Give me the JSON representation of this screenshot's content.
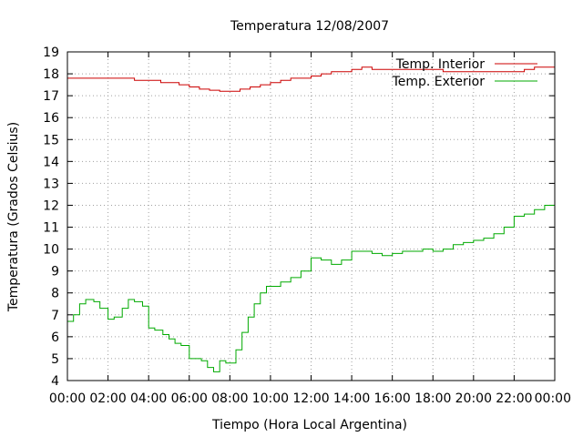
{
  "chart_data": {
    "type": "line",
    "title": "Temperatura 12/08/2007",
    "xlabel": "Tiempo (Hora Local Argentina)",
    "ylabel": "Temperatura (Grados Celsius)",
    "x_unit": "hours",
    "xlim": [
      0,
      24
    ],
    "ylim": [
      4,
      19
    ],
    "x_ticks": [
      0,
      2,
      4,
      6,
      8,
      10,
      12,
      14,
      16,
      18,
      20,
      22,
      24
    ],
    "x_tick_labels": [
      "00:00",
      "02:00",
      "04:00",
      "06:00",
      "08:00",
      "10:00",
      "12:00",
      "14:00",
      "16:00",
      "18:00",
      "20:00",
      "22:00",
      "00:00"
    ],
    "y_ticks": [
      4,
      5,
      6,
      7,
      8,
      9,
      10,
      11,
      12,
      13,
      14,
      15,
      16,
      17,
      18,
      19
    ],
    "grid": true,
    "legend_position": "top-right",
    "series": [
      {
        "name": "Temp. Interior",
        "color": "#cc0000",
        "x": [
          0,
          1,
          2,
          3,
          3.3,
          4,
          4.6,
          5,
          5.5,
          6,
          6.5,
          7,
          7.5,
          8,
          8.5,
          9,
          9.5,
          10,
          10.5,
          11,
          11.5,
          12,
          12.5,
          13,
          13.5,
          14,
          14.5,
          15,
          16,
          17,
          18,
          18.5,
          19,
          20,
          21,
          22,
          22.5,
          23,
          24
        ],
        "y": [
          17.8,
          17.8,
          17.8,
          17.8,
          17.7,
          17.7,
          17.6,
          17.6,
          17.5,
          17.4,
          17.3,
          17.25,
          17.2,
          17.2,
          17.3,
          17.4,
          17.5,
          17.6,
          17.7,
          17.8,
          17.8,
          17.9,
          18.0,
          18.1,
          18.1,
          18.2,
          18.3,
          18.2,
          18.2,
          18.2,
          18.2,
          18.1,
          18.1,
          18.1,
          18.1,
          18.1,
          18.2,
          18.3,
          18.3
        ]
      },
      {
        "name": "Temp. Exterior",
        "color": "#00aa00",
        "x": [
          0,
          0.3,
          0.6,
          0.9,
          1.3,
          1.6,
          2.0,
          2.3,
          2.7,
          3.0,
          3.3,
          3.7,
          4.0,
          4.3,
          4.7,
          5.0,
          5.3,
          5.6,
          6.0,
          6.3,
          6.6,
          6.9,
          7.2,
          7.5,
          7.8,
          8.0,
          8.3,
          8.6,
          8.9,
          9.2,
          9.5,
          9.8,
          10.1,
          10.5,
          11,
          11.5,
          12,
          12.5,
          13,
          13.5,
          14,
          14.5,
          15,
          15.5,
          16,
          16.5,
          17,
          17.5,
          18,
          18.5,
          19,
          19.5,
          20,
          20.5,
          21,
          21.5,
          22,
          22.5,
          23,
          23.5,
          24
        ],
        "y": [
          6.7,
          7.0,
          7.5,
          7.7,
          7.6,
          7.3,
          6.8,
          6.9,
          7.3,
          7.7,
          7.6,
          7.4,
          6.4,
          6.3,
          6.1,
          5.9,
          5.7,
          5.6,
          5.0,
          5.0,
          4.9,
          4.6,
          4.4,
          4.9,
          4.8,
          4.8,
          5.4,
          6.2,
          6.9,
          7.5,
          8.0,
          8.3,
          8.3,
          8.5,
          8.7,
          9.0,
          9.6,
          9.5,
          9.3,
          9.5,
          9.9,
          9.9,
          9.8,
          9.7,
          9.8,
          9.9,
          9.9,
          10.0,
          9.9,
          10.0,
          10.2,
          10.3,
          10.4,
          10.5,
          10.7,
          11.0,
          11.5,
          11.6,
          11.8,
          12.0,
          12.6
        ]
      }
    ]
  }
}
